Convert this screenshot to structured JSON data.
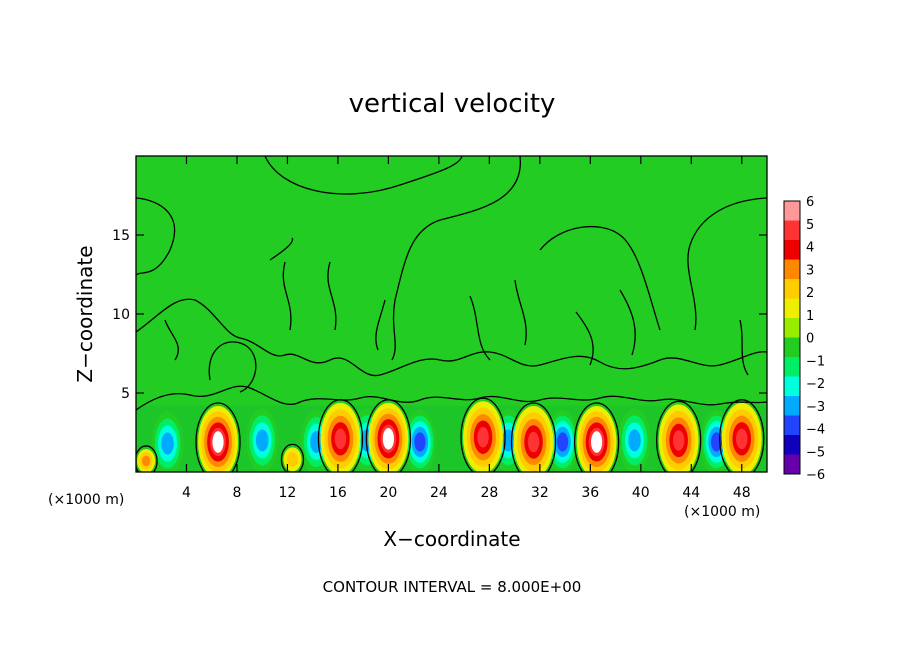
{
  "chart_data": {
    "type": "heatmap",
    "title": "vertical velocity",
    "xlabel": "X−coordinate",
    "ylabel": "Z−coordinate",
    "x_unit_left": "(×1000 m)",
    "x_unit_right": "(×1000 m)",
    "footer": "CONTOUR INTERVAL = 8.000E+00",
    "xlim": [
      0,
      50
    ],
    "ylim": [
      0,
      20
    ],
    "x_ticks": [
      "4",
      "8",
      "12",
      "16",
      "20",
      "24",
      "28",
      "32",
      "36",
      "40",
      "44",
      "48"
    ],
    "y_ticks": [
      "5",
      "10",
      "15"
    ],
    "colorbar": {
      "labels": [
        "6",
        "5",
        "4",
        "3",
        "2",
        "1",
        "0",
        "−1",
        "−2",
        "−3",
        "−4",
        "−5",
        "−6"
      ],
      "colors": [
        "#ff9999",
        "#ff3333",
        "#ee0000",
        "#ff8800",
        "#ffcc00",
        "#eeee00",
        "#99ee00",
        "#22cc22",
        "#00ee66",
        "#00ffdd",
        "#00aaff",
        "#2244ff",
        "#1100bb",
        "#6600aa"
      ]
    },
    "updrafts": [
      {
        "x": 6.5,
        "z": 1.9,
        "max": 6
      },
      {
        "x": 16.2,
        "z": 2.1,
        "max": 5
      },
      {
        "x": 20.0,
        "z": 2.1,
        "max": 6
      },
      {
        "x": 27.5,
        "z": 2.2,
        "max": 5
      },
      {
        "x": 31.5,
        "z": 1.9,
        "max": 5
      },
      {
        "x": 36.5,
        "z": 1.9,
        "max": 6
      },
      {
        "x": 43.0,
        "z": 2.0,
        "max": 5
      },
      {
        "x": 48.0,
        "z": 2.1,
        "max": 5
      },
      {
        "x": 0.8,
        "z": 0.7,
        "max": 3
      },
      {
        "x": 12.4,
        "z": 0.8,
        "max": 2
      }
    ],
    "downdrafts": [
      {
        "x": 2.5,
        "z": 1.8,
        "min": -4
      },
      {
        "x": 10.0,
        "z": 2.0,
        "min": -4
      },
      {
        "x": 14.3,
        "z": 1.9,
        "min": -4
      },
      {
        "x": 18.3,
        "z": 2.0,
        "min": -4
      },
      {
        "x": 22.5,
        "z": 1.9,
        "min": -5
      },
      {
        "x": 29.5,
        "z": 2.0,
        "min": -4
      },
      {
        "x": 33.8,
        "z": 1.9,
        "min": -5
      },
      {
        "x": 39.5,
        "z": 2.0,
        "min": -4
      },
      {
        "x": 46.0,
        "z": 1.9,
        "min": -5
      }
    ]
  }
}
